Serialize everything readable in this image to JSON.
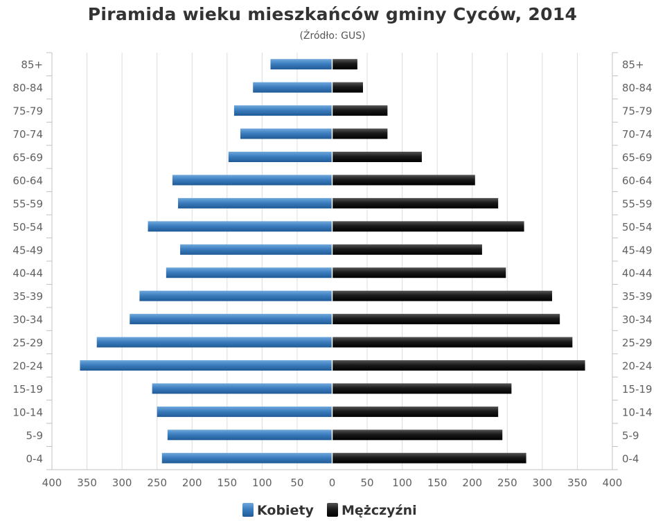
{
  "chart_data": {
    "type": "bar",
    "orientation": "horizontal-population-pyramid",
    "title": "Piramida wieku mieszkańców gminy Cyców, 2014",
    "subtitle": "(Źródło: GUS)",
    "categories": [
      "0-4",
      "5-9",
      "10-14",
      "15-19",
      "20-24",
      "25-29",
      "30-34",
      "35-39",
      "40-44",
      "45-49",
      "50-54",
      "55-59",
      "60-64",
      "65-69",
      "70-74",
      "75-79",
      "80-84",
      "85+"
    ],
    "series": [
      {
        "name": "Kobiety",
        "color": "#3d7ebf",
        "values": [
          243,
          235,
          250,
          257,
          360,
          336,
          289,
          275,
          237,
          217,
          263,
          220,
          228,
          148,
          131,
          140,
          113,
          88
        ]
      },
      {
        "name": "Mężczyźni",
        "color": "#111111",
        "values": [
          277,
          243,
          237,
          256,
          361,
          343,
          325,
          314,
          248,
          214,
          274,
          237,
          204,
          128,
          79,
          79,
          44,
          36
        ]
      }
    ],
    "x_ticks": [
      "400",
      "350",
      "300",
      "250",
      "200",
      "150",
      "100",
      "50",
      "0",
      "50",
      "100",
      "150",
      "200",
      "250",
      "300",
      "350",
      "400"
    ],
    "xlim": [
      -400,
      400
    ],
    "grid": true,
    "legend_position": "bottom"
  }
}
